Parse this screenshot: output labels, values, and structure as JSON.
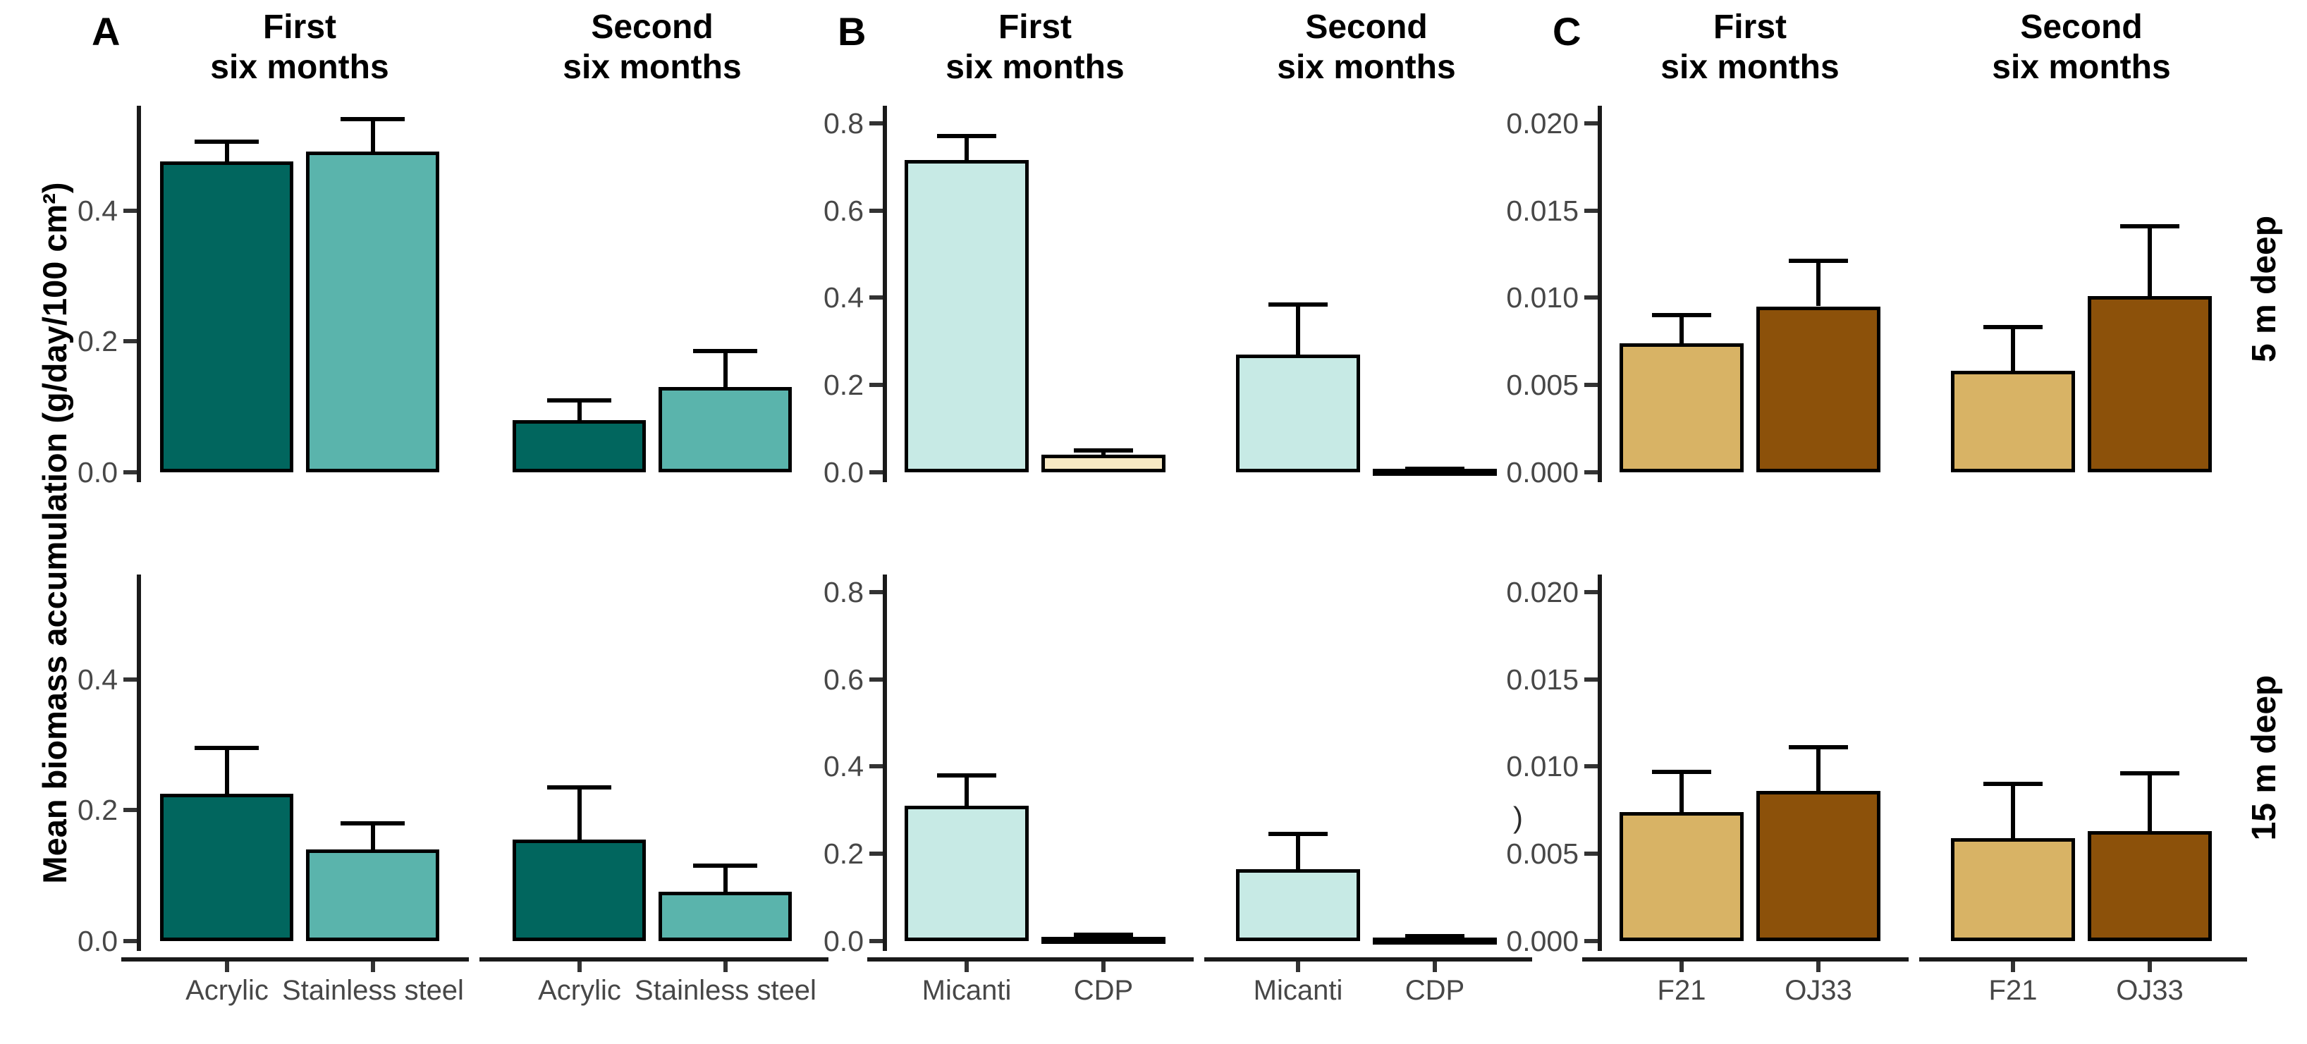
{
  "figure": {
    "y_axis_label": "Mean biomass accumulation (g/day/100 cm²)",
    "row_labels": [
      "5 m deep",
      "15 m deep"
    ],
    "column_titles": [
      [
        "First",
        "six months"
      ],
      [
        "Second",
        "six months"
      ]
    ],
    "stray_mark": ")",
    "background": "#ffffff",
    "axis_color": "#1a1a1a",
    "tick_text_color": "#474747"
  },
  "chart_data": [
    {
      "type": "bar",
      "panel": "A",
      "categories": [
        "Acrylic",
        "Stainless steel"
      ],
      "colors": [
        "#01665e",
        "#5ab4ac"
      ],
      "ytick_values": [
        0,
        0.2,
        0.4
      ],
      "ytick_labels": [
        "0.0",
        "0.2",
        "0.4"
      ],
      "ymax": 0.56,
      "ylabel": "Mean biomass accumulation (g/day/100 cm²)",
      "legend": "none",
      "grid": "off",
      "rows": [
        "5 m deep",
        "15 m deep"
      ],
      "cols": [
        "First six months",
        "Second six months"
      ],
      "subplots": [
        {
          "row": "5 m deep",
          "col": "First six months",
          "values": [
            0.475,
            0.49
          ],
          "errors_top": [
            0.505,
            0.54
          ]
        },
        {
          "row": "5 m deep",
          "col": "Second six months",
          "values": [
            0.08,
            0.13
          ],
          "errors_top": [
            0.11,
            0.185
          ]
        },
        {
          "row": "15 m deep",
          "col": "First six months",
          "values": [
            0.225,
            0.14
          ],
          "errors_top": [
            0.295,
            0.18
          ]
        },
        {
          "row": "15 m deep",
          "col": "Second six months",
          "values": [
            0.155,
            0.075
          ],
          "errors_top": [
            0.235,
            0.115
          ]
        }
      ]
    },
    {
      "type": "bar",
      "panel": "B",
      "categories": [
        "Micanti",
        "CDP"
      ],
      "colors": [
        "#c7eae5",
        "#f6e8c3"
      ],
      "ytick_values": [
        0,
        0.2,
        0.4,
        0.6,
        0.8
      ],
      "ytick_labels": [
        "0.0",
        "0.2",
        "0.4",
        "0.6",
        "0.8"
      ],
      "ymax": 0.84,
      "ylabel": "Mean biomass accumulation (g/day/100 cm²)",
      "legend": "none",
      "grid": "off",
      "rows": [
        "5 m deep",
        "15 m deep"
      ],
      "cols": [
        "First six months",
        "Second six months"
      ],
      "subplots": [
        {
          "row": "5 m deep",
          "col": "First six months",
          "values": [
            0.715,
            0.04
          ],
          "errors_top": [
            0.77,
            0.05
          ]
        },
        {
          "row": "5 m deep",
          "col": "Second six months",
          "values": [
            0.27,
            0.005
          ],
          "errors_top": [
            0.385,
            0.008
          ]
        },
        {
          "row": "15 m deep",
          "col": "First six months",
          "values": [
            0.31,
            0.01
          ],
          "errors_top": [
            0.38,
            0.015
          ]
        },
        {
          "row": "15 m deep",
          "col": "Second six months",
          "values": [
            0.165,
            0.008
          ],
          "errors_top": [
            0.245,
            0.012
          ]
        }
      ]
    },
    {
      "type": "bar",
      "panel": "C",
      "categories": [
        "F21",
        "OJ33"
      ],
      "colors": [
        "#d8b365",
        "#8c510a"
      ],
      "ytick_values": [
        0,
        0.005,
        0.01,
        0.015,
        0.02
      ],
      "ytick_labels": [
        "0.000",
        "0.005",
        "0.010",
        "0.015",
        "0.020"
      ],
      "ymax": 0.021,
      "ylabel": "Mean biomass accumulation (g/day/100 cm²)",
      "legend": "none",
      "grid": "off",
      "rows": [
        "5 m deep",
        "15 m deep"
      ],
      "cols": [
        "First six months",
        "Second six months"
      ],
      "subplots": [
        {
          "row": "5 m deep",
          "col": "First six months",
          "values": [
            0.0074,
            0.0095
          ],
          "errors_top": [
            0.009,
            0.0121
          ]
        },
        {
          "row": "5 m deep",
          "col": "Second six months",
          "values": [
            0.0058,
            0.0101
          ],
          "errors_top": [
            0.0083,
            0.0141
          ]
        },
        {
          "row": "15 m deep",
          "col": "First six months",
          "values": [
            0.0074,
            0.0086
          ],
          "errors_top": [
            0.0097,
            0.0111
          ]
        },
        {
          "row": "15 m deep",
          "col": "Second six months",
          "values": [
            0.0059,
            0.0063
          ],
          "errors_top": [
            0.009,
            0.0096
          ]
        }
      ]
    }
  ]
}
